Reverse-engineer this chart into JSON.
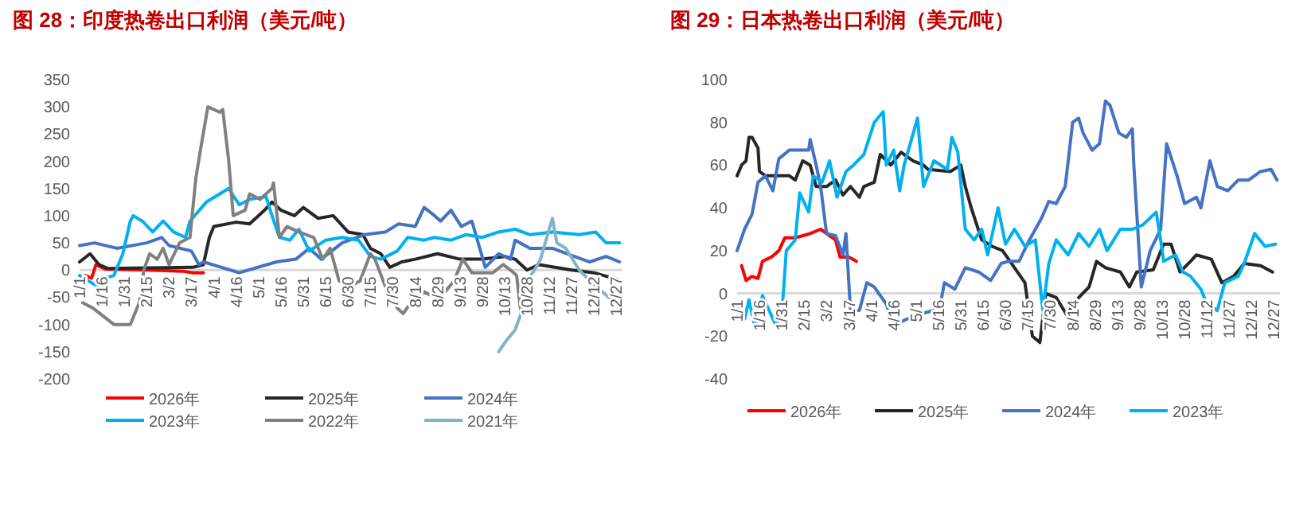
{
  "chart_data": [
    {
      "type": "line",
      "title": "图 28：印度热卷出口利润（美元/吨）",
      "ylim": [
        -200,
        350
      ],
      "yticks": [
        -200,
        -150,
        -100,
        -50,
        0,
        50,
        100,
        150,
        200,
        250,
        300,
        350
      ],
      "xlim": [
        "--01-01",
        "--12-31"
      ],
      "xticks": [
        {
          "value": "--01-01",
          "label": "1/1"
        },
        {
          "value": "--01-16",
          "label": "1/16"
        },
        {
          "value": "--01-31",
          "label": "1/31"
        },
        {
          "value": "--02-15",
          "label": "2/15"
        },
        {
          "value": "--03-02",
          "label": "3/2"
        },
        {
          "value": "--03-17",
          "label": "3/17"
        },
        {
          "value": "--04-01",
          "label": "4/1"
        },
        {
          "value": "--04-16",
          "label": "4/16"
        },
        {
          "value": "--05-01",
          "label": "5/1"
        },
        {
          "value": "--05-16",
          "label": "5/16"
        },
        {
          "value": "--05-31",
          "label": "5/31"
        },
        {
          "value": "--06-15",
          "label": "6/15"
        },
        {
          "value": "--06-30",
          "label": "6/30"
        },
        {
          "value": "--07-15",
          "label": "7/15"
        },
        {
          "value": "--07-30",
          "label": "7/30"
        },
        {
          "value": "--08-14",
          "label": "8/14"
        },
        {
          "value": "--08-29",
          "label": "8/29"
        },
        {
          "value": "--09-13",
          "label": "9/13"
        },
        {
          "value": "--09-28",
          "label": "9/28"
        },
        {
          "value": "--10-13",
          "label": "10/13"
        },
        {
          "value": "--10-28",
          "label": "10/28"
        },
        {
          "value": "--11-12",
          "label": "11/12"
        },
        {
          "value": "--11-27",
          "label": "11/27"
        },
        {
          "value": "--12-12",
          "label": "12/12"
        },
        {
          "value": "--12-27",
          "label": "12/27"
        }
      ],
      "legend": "bottom",
      "series": [
        {
          "name": "2026年",
          "color": "#ff0000",
          "x": [
            "--01-05",
            "--01-09",
            "--01-12",
            "--01-18",
            "--02-15",
            "--03-11",
            "--03-18",
            "--03-25"
          ],
          "values": [
            -10,
            -15,
            10,
            2,
            0,
            -2,
            -5,
            -5
          ]
        },
        {
          "name": "2025年",
          "color": "#262626",
          "x": [
            "--01-01",
            "--01-08",
            "--01-14",
            "--01-20",
            "--03-18",
            "--03-25",
            "--03-29",
            "--04-01",
            "--04-16",
            "--04-25",
            "--05-05",
            "--05-10",
            "--05-16",
            "--05-25",
            "--05-31",
            "--06-10",
            "--06-20",
            "--06-30",
            "--07-10",
            "--07-15",
            "--07-22",
            "--07-28",
            "--08-05",
            "--08-14",
            "--08-29",
            "--09-13",
            "--09-28",
            "--10-13",
            "--10-20",
            "--10-28",
            "--11-05",
            "--11-27",
            "--12-12",
            "--12-31"
          ],
          "values": [
            15,
            30,
            10,
            3,
            5,
            10,
            60,
            80,
            88,
            85,
            110,
            125,
            110,
            100,
            115,
            95,
            100,
            70,
            65,
            40,
            30,
            5,
            15,
            20,
            30,
            20,
            20,
            25,
            20,
            0,
            10,
            0,
            -5,
            -20
          ]
        },
        {
          "name": "2024年",
          "color": "#4472c4",
          "x": [
            "--01-01",
            "--01-11",
            "--01-26",
            "--02-15",
            "--02-25",
            "--03-02",
            "--03-17",
            "--03-22",
            "--03-25",
            "--04-18",
            "--05-13",
            "--05-26",
            "--06-04",
            "--06-12",
            "--06-26",
            "--07-11",
            "--07-25",
            "--08-03",
            "--08-14",
            "--08-20",
            "--08-27",
            "--08-31",
            "--09-07",
            "--09-14",
            "--09-21",
            "--09-30",
            "--10-09",
            "--10-17",
            "--10-20",
            "--10-30",
            "--11-14",
            "--11-24",
            "--12-09",
            "--12-20",
            "--12-29"
          ],
          "values": [
            45,
            50,
            40,
            50,
            60,
            45,
            35,
            10,
            15,
            -5,
            15,
            20,
            40,
            20,
            50,
            65,
            70,
            85,
            80,
            115,
            100,
            90,
            110,
            80,
            90,
            5,
            30,
            20,
            55,
            40,
            40,
            30,
            15,
            25,
            15
          ]
        },
        {
          "name": "2023年",
          "color": "#00b0f0",
          "x": [
            "--01-01",
            "--01-10",
            "--01-14",
            "--01-18",
            "--01-24",
            "--01-30",
            "--02-04",
            "--02-06",
            "--02-12",
            "--02-19",
            "--02-26",
            "--03-05",
            "--03-13",
            "--03-16",
            "--03-27",
            "--04-11",
            "--04-18",
            "--04-25",
            "--05-06",
            "--05-10",
            "--05-15",
            "--05-22",
            "--05-28",
            "--06-04",
            "--06-15",
            "--06-26",
            "--07-07",
            "--07-15",
            "--07-22",
            "--08-02",
            "--08-09",
            "--08-20",
            "--08-27",
            "--09-07",
            "--09-17",
            "--09-28",
            "--10-09",
            "--10-20",
            "--10-30",
            "--11-14",
            "--12-02",
            "--12-13",
            "--12-20",
            "--12-29"
          ],
          "values": [
            -10,
            -25,
            -30,
            -15,
            -10,
            30,
            90,
            100,
            90,
            70,
            90,
            70,
            60,
            90,
            125,
            150,
            120,
            130,
            135,
            100,
            60,
            55,
            75,
            35,
            55,
            60,
            55,
            25,
            20,
            35,
            60,
            55,
            60,
            55,
            65,
            60,
            70,
            75,
            65,
            70,
            65,
            70,
            50,
            50
          ]
        },
        {
          "name": "2022年",
          "color": "#808080",
          "x": [
            "--01-03",
            "--01-10",
            "--01-24",
            "--02-04",
            "--02-10",
            "--02-13",
            "--02-17",
            "--02-22",
            "--02-26",
            "--03-02",
            "--03-09",
            "--03-16",
            "--03-20",
            "--03-23",
            "--03-28",
            "--04-05",
            "--04-07",
            "--04-11",
            "--04-14",
            "--04-22",
            "--04-25",
            "--05-02",
            "--05-10",
            "--05-11",
            "--05-15",
            "--05-20",
            "--05-28",
            "--06-07",
            "--06-13",
            "--06-18",
            "--06-24",
            "--07-01",
            "--07-08",
            "--07-15",
            "--07-18",
            "--07-25",
            "--08-02",
            "--08-06",
            "--08-11",
            "--08-20",
            "--08-27",
            "--09-03",
            "--09-09",
            "--09-15",
            "--09-21",
            "--10-05",
            "--10-12",
            "--10-17",
            "--10-21",
            "--10-24"
          ],
          "values": [
            -60,
            -70,
            -100,
            -100,
            -60,
            0,
            30,
            20,
            40,
            10,
            50,
            60,
            170,
            220,
            300,
            290,
            295,
            200,
            100,
            110,
            140,
            130,
            150,
            160,
            60,
            80,
            70,
            60,
            20,
            40,
            -20,
            -30,
            -20,
            30,
            20,
            -30,
            -70,
            -80,
            -60,
            -40,
            -50,
            -40,
            -20,
            20,
            -5,
            -5,
            10,
            0,
            -10,
            -80
          ]
        },
        {
          "name": "2021年",
          "color": "#7fb5c8",
          "x": [
            "--10-09",
            "--10-14",
            "--10-20",
            "--10-24",
            "--10-28",
            "--11-02",
            "--11-06",
            "--11-14",
            "--11-17",
            "--11-23",
            "--12-02",
            "--12-13",
            "--12-24",
            "--12-29"
          ],
          "values": [
            -150,
            -130,
            -110,
            -80,
            -20,
            0,
            20,
            95,
            50,
            40,
            0,
            -30,
            -55,
            -60
          ]
        }
      ]
    },
    {
      "type": "line",
      "title": "图 29：日本热卷出口利润（美元/吨）",
      "ylim": [
        -40,
        100
      ],
      "yticks": [
        -40,
        -20,
        0,
        20,
        40,
        60,
        80,
        100
      ],
      "xlim": [
        "--01-01",
        "--12-31"
      ],
      "xticks": [
        {
          "value": "--01-01",
          "label": "1/1"
        },
        {
          "value": "--01-16",
          "label": "1/16"
        },
        {
          "value": "--01-31",
          "label": "1/31"
        },
        {
          "value": "--02-15",
          "label": "2/15"
        },
        {
          "value": "--03-02",
          "label": "3/2"
        },
        {
          "value": "--03-17",
          "label": "3/17"
        },
        {
          "value": "--04-01",
          "label": "4/1"
        },
        {
          "value": "--04-16",
          "label": "4/16"
        },
        {
          "value": "--05-01",
          "label": "5/1"
        },
        {
          "value": "--05-16",
          "label": "5/16"
        },
        {
          "value": "--05-31",
          "label": "5/31"
        },
        {
          "value": "--06-15",
          "label": "6/15"
        },
        {
          "value": "--06-30",
          "label": "6/30"
        },
        {
          "value": "--07-15",
          "label": "7/15"
        },
        {
          "value": "--07-30",
          "label": "7/30"
        },
        {
          "value": "--08-14",
          "label": "8/14"
        },
        {
          "value": "--08-29",
          "label": "8/29"
        },
        {
          "value": "--09-13",
          "label": "9/13"
        },
        {
          "value": "--09-28",
          "label": "9/28"
        },
        {
          "value": "--10-13",
          "label": "10/13"
        },
        {
          "value": "--10-28",
          "label": "10/28"
        },
        {
          "value": "--11-12",
          "label": "11/12"
        },
        {
          "value": "--11-27",
          "label": "11/27"
        },
        {
          "value": "--12-12",
          "label": "12/12"
        },
        {
          "value": "--12-27",
          "label": "12/27"
        }
      ],
      "legend": "bottom",
      "series": [
        {
          "name": "2026年",
          "color": "#ff0000",
          "x": [
            "--01-04",
            "--01-07",
            "--01-11",
            "--01-15",
            "--01-18",
            "--01-24",
            "--01-29",
            "--02-02",
            "--02-09",
            "--02-19",
            "--02-26",
            "--03-02",
            "--03-08",
            "--03-11",
            "--03-17",
            "--03-22"
          ],
          "values": [
            13,
            6,
            8,
            7,
            15,
            17,
            20,
            26,
            26,
            28,
            30,
            28,
            25,
            17,
            17,
            15
          ]
        },
        {
          "name": "2025年",
          "color": "#262626",
          "x": [
            "--01-01",
            "--01-04",
            "--01-07",
            "--01-09",
            "--01-11",
            "--01-15",
            "--01-16",
            "--01-20",
            "--02-05",
            "--02-09",
            "--02-14",
            "--02-19",
            "--02-23",
            "--03-02",
            "--03-08",
            "--03-13",
            "--03-18",
            "--03-24",
            "--03-27",
            "--04-03",
            "--04-07",
            "--04-14",
            "--04-21",
            "--04-29",
            "--05-06",
            "--05-09",
            "--05-24",
            "--05-31",
            "--06-03",
            "--06-07",
            "--06-14",
            "--06-21",
            "--06-28",
            "--07-06",
            "--07-13",
            "--07-18",
            "--07-23",
            "--07-27",
            "--08-03",
            "--08-10",
            "--08-18",
            "--08-25",
            "--08-30",
            "--09-05",
            "--09-15",
            "--09-21",
            "--09-26",
            "--10-07",
            "--10-14",
            "--10-19",
            "--10-25",
            "--11-01",
            "--11-05",
            "--11-15",
            "--11-22",
            "--11-30",
            "--12-07",
            "--12-18",
            "--12-26"
          ],
          "values": [
            55,
            60,
            62,
            73,
            73,
            68,
            57,
            55,
            55,
            53,
            62,
            60,
            50,
            50,
            53,
            46,
            50,
            45,
            50,
            52,
            65,
            60,
            66,
            62,
            60,
            58,
            57,
            60,
            50,
            40,
            25,
            22,
            20,
            12,
            5,
            -20,
            -23,
            0,
            -2,
            -10,
            -2,
            3,
            15,
            12,
            10,
            3,
            10,
            11,
            23,
            23,
            10,
            15,
            18,
            16,
            5,
            8,
            14,
            13,
            10
          ]
        },
        {
          "name": "2024年",
          "color": "#4472c4",
          "x": [
            "--01-01",
            "--01-06",
            "--01-11",
            "--01-15",
            "--01-20",
            "--01-25",
            "--01-29",
            "--02-05",
            "--02-18",
            "--02-19",
            "--02-23",
            "--02-26",
            "--03-02",
            "--03-08",
            "--03-13",
            "--03-15",
            "--03-18",
            "--03-24",
            "--03-29",
            "--04-03",
            "--04-11",
            "--04-16",
            "--04-25",
            "--05-02",
            "--05-13",
            "--05-16",
            "--05-20",
            "--05-27",
            "--06-03",
            "--06-12",
            "--06-20",
            "--06-27",
            "--07-02",
            "--07-09",
            "--07-16",
            "--07-24",
            "--07-29",
            "--08-03",
            "--08-09",
            "--08-14",
            "--08-18",
            "--08-21",
            "--08-27",
            "--09-01",
            "--09-05",
            "--09-08",
            "--09-14",
            "--09-19",
            "--09-23",
            "--09-24",
            "--09-29",
            "--10-05",
            "--10-12",
            "--10-16",
            "--10-23",
            "--10-28",
            "--11-05",
            "--11-08",
            "--11-14",
            "--11-19",
            "--11-26",
            "--12-03",
            "--12-10",
            "--12-18",
            "--12-25",
            "--12-29"
          ],
          "values": [
            20,
            30,
            37,
            52,
            55,
            48,
            63,
            67,
            67,
            72,
            60,
            50,
            28,
            27,
            18,
            28,
            -8,
            -8,
            5,
            3,
            -5,
            -15,
            -12,
            -10,
            -8,
            -10,
            5,
            2,
            12,
            10,
            6,
            14,
            15,
            15,
            25,
            35,
            43,
            42,
            50,
            80,
            82,
            75,
            67,
            70,
            90,
            88,
            75,
            73,
            77,
            60,
            3,
            20,
            30,
            70,
            55,
            42,
            45,
            40,
            62,
            50,
            48,
            53,
            53,
            57,
            58,
            53
          ]
        },
        {
          "name": "2023年",
          "color": "#00b0f0",
          "x": [
            "--01-02",
            "--01-06",
            "--01-09",
            "--01-13",
            "--01-18",
            "--01-27",
            "--01-31",
            "--02-03",
            "--02-09",
            "--02-12",
            "--02-18",
            "--02-21",
            "--02-27",
            "--03-04",
            "--03-09",
            "--03-15",
            "--03-20",
            "--03-27",
            "--04-03",
            "--04-09",
            "--04-11",
            "--04-16",
            "--04-20",
            "--04-23",
            "--05-02",
            "--05-06",
            "--05-13",
            "--05-22",
            "--05-25",
            "--05-29",
            "--06-03",
            "--06-09",
            "--06-14",
            "--06-18",
            "--06-25",
            "--06-30",
            "--07-06",
            "--07-13",
            "--07-20",
            "--07-25",
            "--07-29",
            "--08-03",
            "--08-11",
            "--08-18",
            "--08-25",
            "--09-01",
            "--09-06",
            "--09-15",
            "--09-23",
            "--09-30",
            "--10-09",
            "--10-12",
            "--10-14",
            "--10-22",
            "--10-27",
            "--11-01",
            "--11-08",
            "--11-12",
            "--11-19",
            "--11-24",
            "--12-03",
            "--12-07",
            "--12-14",
            "--12-21",
            "--12-28"
          ],
          "values": [
            -5,
            -12,
            -3,
            -16,
            -1,
            -15,
            -10,
            20,
            25,
            47,
            38,
            55,
            52,
            62,
            45,
            57,
            60,
            65,
            80,
            85,
            60,
            67,
            48,
            60,
            82,
            50,
            62,
            58,
            73,
            66,
            30,
            25,
            30,
            18,
            40,
            23,
            30,
            22,
            25,
            -8,
            14,
            25,
            18,
            28,
            22,
            30,
            20,
            30,
            30,
            32,
            38,
            25,
            15,
            18,
            10,
            8,
            2,
            -5,
            -8,
            5,
            8,
            14,
            28,
            22,
            23
          ]
        }
      ]
    }
  ]
}
